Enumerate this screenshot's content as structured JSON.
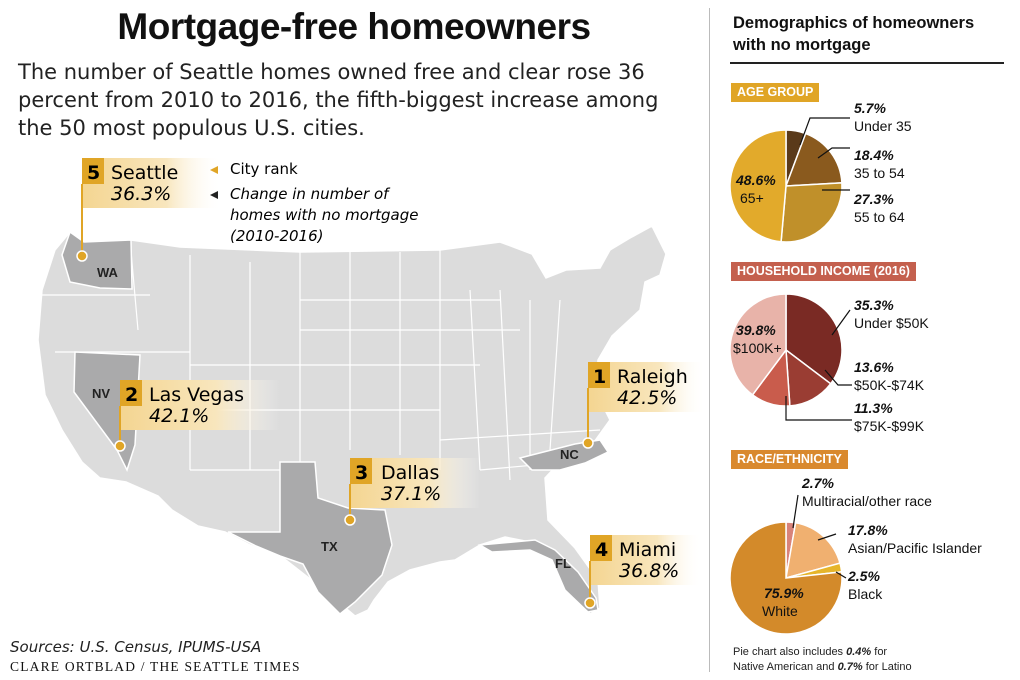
{
  "title": "Mortgage-free homeowners",
  "intro": "The number of Seattle homes owned free and clear rose 36 percent from 2010 to 2016, the fifth-biggest increase among the 50 most populous U.S. cities.",
  "legend": {
    "rank_label": "City rank",
    "change_label_1": "Change in number of",
    "change_label_2": "homes with no mortgage",
    "change_label_3": "(2010-2016)"
  },
  "colors": {
    "gold": "#e0a526",
    "map_land": "#dcdcdc",
    "map_highlight": "#aaaaab"
  },
  "chart_data": [
    {
      "type": "table",
      "title": "",
      "columns": [
        "rank",
        "city",
        "state",
        "change"
      ],
      "rows": [
        {
          "rank": "1",
          "city": "Raleigh",
          "state": "NC",
          "change": "42.5%"
        },
        {
          "rank": "2",
          "city": "Las Vegas",
          "state": "NV",
          "change": "42.1%"
        },
        {
          "rank": "3",
          "city": "Dallas",
          "state": "TX",
          "change": "37.1%"
        },
        {
          "rank": "4",
          "city": "Miami",
          "state": "FL",
          "change": "36.8%"
        },
        {
          "rank": "5",
          "city": "Seattle",
          "state": "WA",
          "change": "36.3%"
        }
      ]
    },
    {
      "type": "pie",
      "title": "AGE GROUP",
      "slices": [
        {
          "label": "Under 35",
          "value": 5.7,
          "pct": "5.7%",
          "color": "#5a3a1a"
        },
        {
          "label": "35 to 54",
          "value": 18.4,
          "pct": "18.4%",
          "color": "#8a5a1e"
        },
        {
          "label": "55 to 64",
          "value": 27.3,
          "pct": "27.3%",
          "color": "#c0902a"
        },
        {
          "label": "65+",
          "value": 48.6,
          "pct": "48.6%",
          "color": "#e2aa2b"
        }
      ]
    },
    {
      "type": "pie",
      "title": "HOUSEHOLD INCOME (2016)",
      "slices": [
        {
          "label": "Under $50K",
          "value": 35.3,
          "pct": "35.3%",
          "color": "#7a2a24"
        },
        {
          "label": "$50K-$74K",
          "value": 13.6,
          "pct": "13.6%",
          "color": "#9a3d33"
        },
        {
          "label": "$75K-$99K",
          "value": 11.3,
          "pct": "11.3%",
          "color": "#c95c4c"
        },
        {
          "label": "$100K+",
          "value": 39.8,
          "pct": "39.8%",
          "color": "#e8b3a9"
        }
      ]
    },
    {
      "type": "pie",
      "title": "RACE/ETHNICITY",
      "slices": [
        {
          "label": "Multiracial/other race",
          "value": 2.7,
          "pct": "2.7%",
          "color": "#d8837a"
        },
        {
          "label": "Asian/Pacific Islander",
          "value": 17.8,
          "pct": "17.8%",
          "color": "#f0b070"
        },
        {
          "label": "Black",
          "value": 2.5,
          "pct": "2.5%",
          "color": "#e6b52a"
        },
        {
          "label": "White",
          "value": 75.9,
          "pct": "75.9%",
          "color": "#d38a2a"
        }
      ]
    }
  ],
  "section_colors": [
    "#e0a526",
    "#c4604e",
    "#d9892e"
  ],
  "pie_note_1_a": "Pie chart also includes ",
  "pie_note_1_b": "0.4%",
  "pie_note_1_c": " for",
  "pie_note_2_a": "Native American and ",
  "pie_note_2_b": "0.7%",
  "pie_note_2_c": " for Latino",
  "right_title_1": "Demographics of homeowners",
  "right_title_2": "with no mortgage",
  "sources": "Sources: U.S. Census, IPUMS-USA",
  "credit": "CLARE ORTBLAD / THE SEATTLE TIMES"
}
